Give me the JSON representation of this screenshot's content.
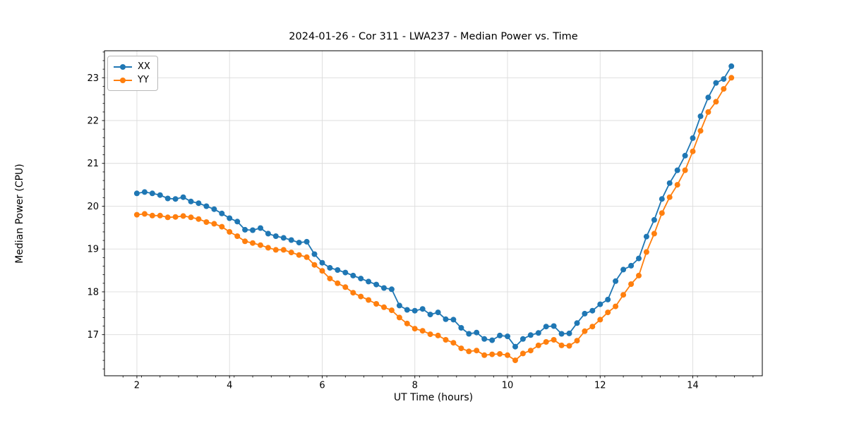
{
  "figure": {
    "title": "2024-01-26 - Cor 311 - LWA237 - Median Power vs. Time",
    "xlabel": "UT Time (hours)",
    "ylabel": "Median Power (CPU)",
    "legend": [
      {
        "label": "XX",
        "color": "#1f77b4"
      },
      {
        "label": "YY",
        "color": "#ff7f0e"
      }
    ]
  },
  "chart_data": {
    "type": "line",
    "title": "2024-01-26 - Cor 311 - LWA237 - Median Power vs. Time",
    "xlabel": "UT Time (hours)",
    "ylabel": "Median Power (CPU)",
    "xlim": [
      1.3,
      15.5
    ],
    "ylim": [
      16.04,
      23.63
    ],
    "x_ticks": [
      2,
      4,
      6,
      8,
      10,
      12,
      14
    ],
    "y_ticks": [
      17,
      18,
      19,
      20,
      21,
      22,
      23
    ],
    "x_minor_step": 0.4,
    "y_minor_step": 0.2,
    "grid": true,
    "grid_color": "#dcdcdc",
    "legend_position": "upper left",
    "marker": "o",
    "marker_radius": 4,
    "line_width": 1.8,
    "x": [
      2.0,
      2.167,
      2.333,
      2.5,
      2.667,
      2.833,
      3.0,
      3.167,
      3.333,
      3.5,
      3.667,
      3.833,
      4.0,
      4.167,
      4.333,
      4.5,
      4.667,
      4.833,
      5.0,
      5.167,
      5.333,
      5.5,
      5.667,
      5.833,
      6.0,
      6.167,
      6.333,
      6.5,
      6.667,
      6.833,
      7.0,
      7.167,
      7.333,
      7.5,
      7.667,
      7.833,
      8.0,
      8.167,
      8.333,
      8.5,
      8.667,
      8.833,
      9.0,
      9.167,
      9.333,
      9.5,
      9.667,
      9.833,
      10.0,
      10.167,
      10.333,
      10.5,
      10.667,
      10.833,
      11.0,
      11.167,
      11.333,
      11.5,
      11.667,
      11.833,
      12.0,
      12.167,
      12.333,
      12.5,
      12.667,
      12.833,
      13.0,
      13.167,
      13.333,
      13.5,
      13.667,
      13.833,
      14.0,
      14.167,
      14.333,
      14.5,
      14.667,
      14.833
    ],
    "series": [
      {
        "name": "XX",
        "color": "#1f77b4",
        "values": [
          20.3,
          20.33,
          20.3,
          20.26,
          20.18,
          20.17,
          20.21,
          20.11,
          20.07,
          20.0,
          19.93,
          19.83,
          19.72,
          19.64,
          19.45,
          19.44,
          19.49,
          19.36,
          19.3,
          19.26,
          19.21,
          19.15,
          19.17,
          18.88,
          18.68,
          18.56,
          18.51,
          18.45,
          18.38,
          18.31,
          18.24,
          18.17,
          18.09,
          18.06,
          17.68,
          17.58,
          17.56,
          17.6,
          17.47,
          17.52,
          17.36,
          17.35,
          17.16,
          17.02,
          17.05,
          16.9,
          16.87,
          16.98,
          16.96,
          16.72,
          16.9,
          16.99,
          17.04,
          17.19,
          17.2,
          17.02,
          17.03,
          17.27,
          17.49,
          17.56,
          17.71,
          17.82,
          18.25,
          18.52,
          18.61,
          18.78,
          19.29,
          19.68,
          20.17,
          20.54,
          20.84,
          21.18,
          21.59,
          22.1,
          22.54,
          22.88,
          22.97,
          23.27
        ]
      },
      {
        "name": "YY",
        "color": "#ff7f0e",
        "values": [
          19.8,
          19.82,
          19.78,
          19.78,
          19.74,
          19.75,
          19.77,
          19.74,
          19.7,
          19.63,
          19.59,
          19.52,
          19.4,
          19.3,
          19.18,
          19.14,
          19.09,
          19.03,
          18.98,
          18.98,
          18.92,
          18.86,
          18.81,
          18.63,
          18.49,
          18.31,
          18.2,
          18.11,
          17.98,
          17.89,
          17.81,
          17.72,
          17.64,
          17.57,
          17.4,
          17.26,
          17.14,
          17.09,
          17.01,
          16.98,
          16.88,
          16.81,
          16.68,
          16.61,
          16.63,
          16.52,
          16.54,
          16.55,
          16.52,
          16.4,
          16.56,
          16.63,
          16.75,
          16.83,
          16.88,
          16.75,
          16.74,
          16.86,
          17.08,
          17.19,
          17.35,
          17.52,
          17.66,
          17.93,
          18.18,
          18.38,
          18.93,
          19.36,
          19.84,
          20.21,
          20.5,
          20.84,
          21.28,
          21.76,
          22.2,
          22.44,
          22.74,
          23.0
        ]
      }
    ]
  }
}
